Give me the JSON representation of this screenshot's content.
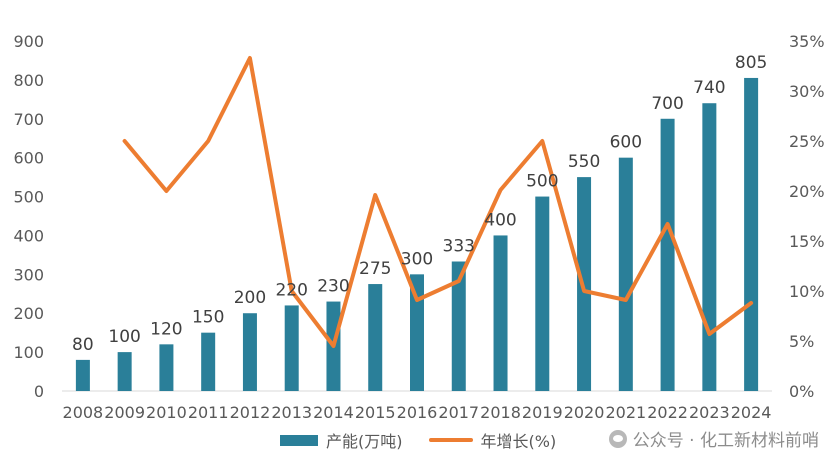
{
  "chart_data": {
    "type": "bar+line",
    "categories": [
      "2008",
      "2009",
      "2010",
      "2011",
      "2012",
      "2013",
      "2014",
      "2015",
      "2016",
      "2017",
      "2018",
      "2019",
      "2020",
      "2021",
      "2022",
      "2023",
      "2024"
    ],
    "series": [
      {
        "name": "产能(万吨)",
        "type": "bar",
        "axis": "left",
        "color": "#2a7f99",
        "values": [
          80,
          100,
          120,
          150,
          200,
          220,
          230,
          275,
          300,
          333,
          400,
          500,
          550,
          600,
          700,
          740,
          805
        ],
        "data_labels": [
          "80",
          "100",
          "120",
          "150",
          "200",
          "220",
          "230",
          "275",
          "300",
          "333",
          "400",
          "500",
          "550",
          "600",
          "700",
          "740",
          "805"
        ]
      },
      {
        "name": "年增长(%)",
        "type": "line",
        "axis": "right",
        "color": "#ed7d31",
        "values": [
          null,
          25,
          20,
          25,
          33.3,
          10,
          4.5,
          19.6,
          9.1,
          11,
          20.1,
          25,
          10,
          9.1,
          16.7,
          5.7,
          8.8
        ]
      }
    ],
    "y_left": {
      "lim": [
        0,
        900
      ],
      "ticks": [
        "0",
        "100",
        "200",
        "300",
        "400",
        "500",
        "600",
        "700",
        "800",
        "900"
      ]
    },
    "y_right": {
      "lim": [
        0,
        35
      ],
      "ticks": [
        "0%",
        "5%",
        "10%",
        "15%",
        "20%",
        "25%",
        "30%",
        "35%"
      ]
    },
    "grid": false,
    "legend_position": "bottom",
    "title": "",
    "xlabel": "",
    "ylabel": ""
  },
  "watermark": "公众号 · 化工新材料前哨"
}
